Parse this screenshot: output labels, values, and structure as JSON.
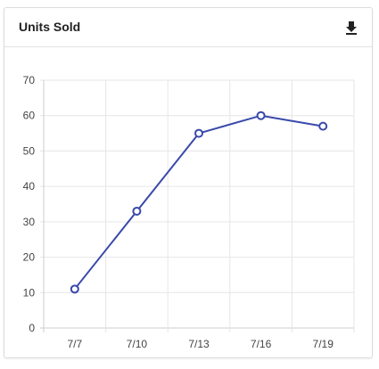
{
  "card": {
    "title": "Units Sold"
  },
  "icons": {
    "download": "download-icon"
  },
  "colors": {
    "line": "#3949ab",
    "point_fill": "#ffffff",
    "grid": "#e6e6e6",
    "axis": "#cccccc"
  },
  "chart_data": {
    "type": "line",
    "title": "Units Sold",
    "xlabel": "",
    "ylabel": "",
    "categories": [
      "7/7",
      "7/10",
      "7/13",
      "7/16",
      "7/19"
    ],
    "series": [
      {
        "values": [
          11,
          33,
          55,
          60,
          57
        ]
      }
    ],
    "ylim": [
      0,
      70
    ],
    "yticks": [
      "0",
      "10",
      "20",
      "30",
      "40",
      "50",
      "60",
      "70"
    ],
    "grid": true,
    "legend": "none"
  }
}
